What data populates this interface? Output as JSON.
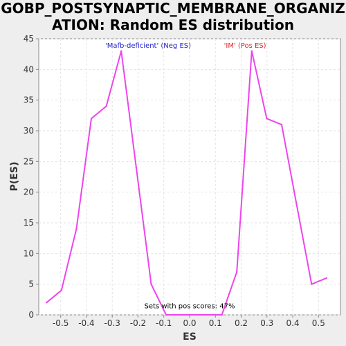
{
  "chart_data": {
    "type": "line",
    "title": "GOBP_POSTSYNAPTIC_MEMBRANE_ORGANIZ\nATION: Random ES distribution",
    "xlabel": "ES",
    "ylabel": "P(ES)",
    "xlim": [
      -0.585,
      0.585
    ],
    "ylim": [
      0,
      45
    ],
    "x_ticks": [
      "-0.5",
      "-0.4",
      "-0.3",
      "-0.2",
      "-0.1",
      "0.0",
      "0.1",
      "0.2",
      "0.3",
      "0.4",
      "0.5"
    ],
    "y_ticks": [
      "0",
      "5",
      "10",
      "15",
      "20",
      "25",
      "30",
      "35",
      "40",
      "45"
    ],
    "grid": true,
    "series": [
      {
        "color": "#ee44ee",
        "x": [
          -0.555,
          -0.497,
          -0.439,
          -0.381,
          -0.323,
          -0.265,
          -0.207,
          -0.149,
          -0.091,
          -0.033,
          0.025,
          0.083,
          0.125,
          0.183,
          0.241,
          0.299,
          0.357,
          0.415,
          0.473,
          0.531
        ],
        "y": [
          2,
          4,
          14,
          32,
          34,
          43,
          24,
          5,
          0,
          0,
          0,
          0,
          0,
          7,
          43,
          32,
          31,
          18,
          5,
          6
        ]
      }
    ],
    "annotations": [
      {
        "text": "'Mafb-deficient' (Neg ES)",
        "color": "#2020cc",
        "x": -0.161,
        "y": 44
      },
      {
        "text": "'IM' (Pos ES)",
        "color": "#dd2222",
        "x": 0.215,
        "y": 44
      },
      {
        "text": "Sets with pos scores: 47%",
        "color": "#000000",
        "x": 0.0,
        "y": 1.5
      }
    ]
  }
}
